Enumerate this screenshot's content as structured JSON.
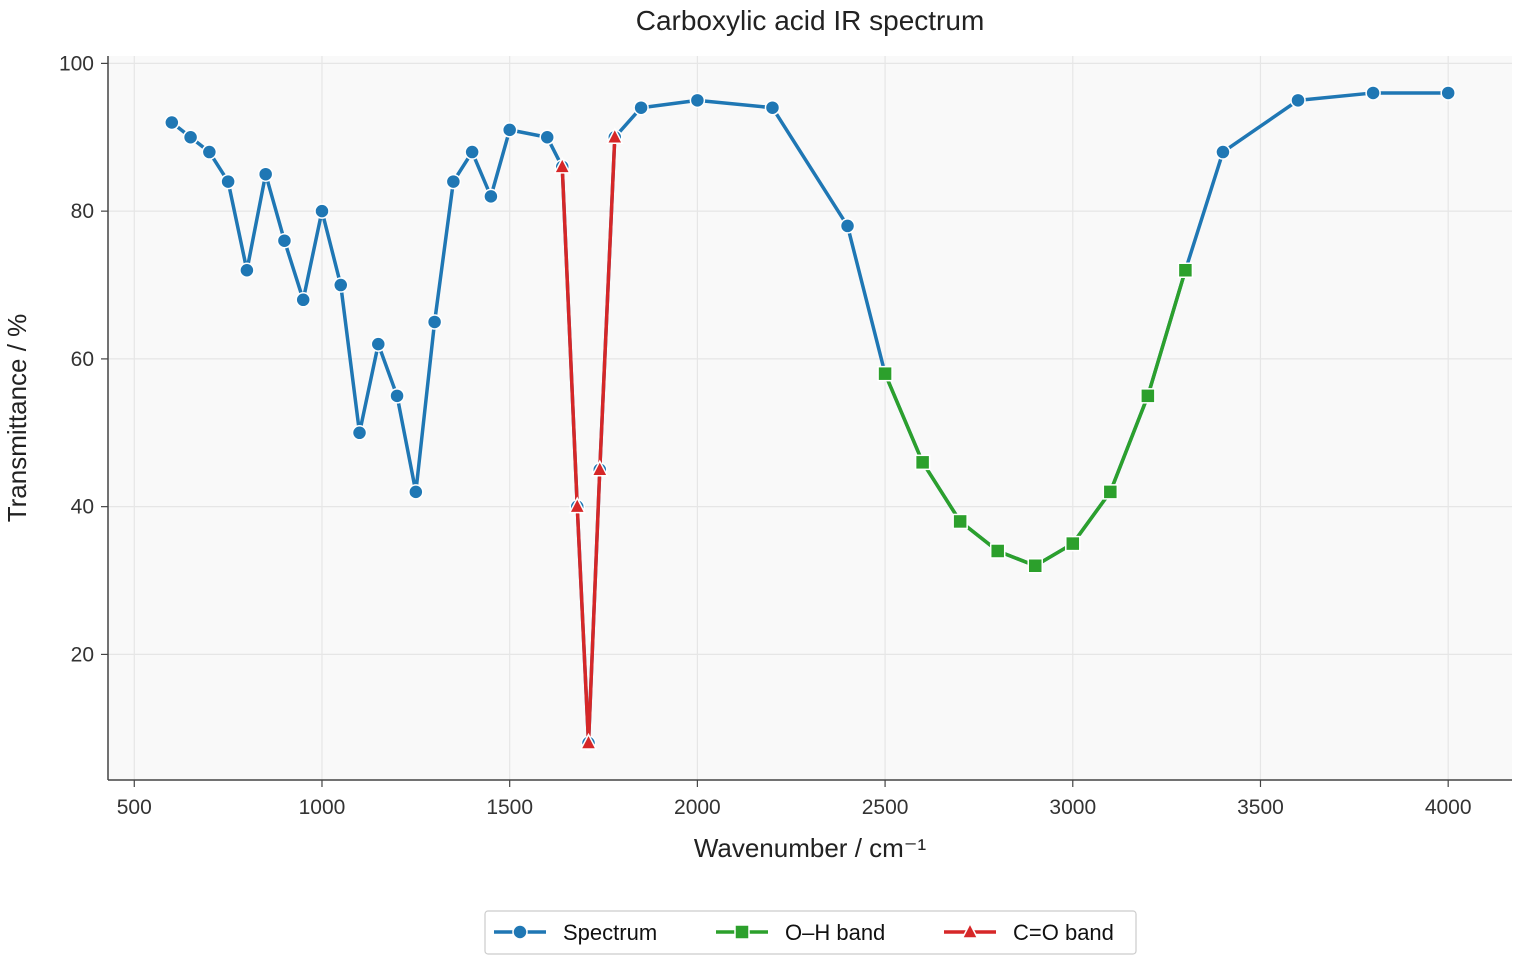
{
  "chart_data": {
    "type": "line",
    "title": "Carboxylic acid IR spectrum",
    "xlabel": "Wavenumber / cm⁻¹",
    "ylabel": "Transmittance / %",
    "xlim": [
      430,
      4170
    ],
    "ylim": [
      3,
      101
    ],
    "xticks": [
      500,
      1000,
      1500,
      2000,
      2500,
      3000,
      3500,
      4000
    ],
    "yticks": [
      20,
      40,
      60,
      80,
      100
    ],
    "grid": true,
    "legend_position": "bottom-center",
    "series": [
      {
        "name": "Spectrum",
        "color": "#1f77b4",
        "marker": "circle",
        "x": [
          600,
          650,
          700,
          750,
          800,
          850,
          900,
          950,
          1000,
          1050,
          1100,
          1150,
          1200,
          1250,
          1300,
          1350,
          1400,
          1450,
          1500,
          1600,
          1640,
          1680,
          1710,
          1740,
          1780,
          1850,
          2000,
          2200,
          2400,
          2500,
          2600,
          2700,
          2800,
          2900,
          3000,
          3100,
          3200,
          3300,
          3400,
          3600,
          3800,
          4000
        ],
        "y": [
          92,
          90,
          88,
          84,
          72,
          85,
          76,
          68,
          80,
          70,
          50,
          62,
          55,
          42,
          65,
          84,
          88,
          82,
          91,
          90,
          86,
          40,
          8,
          45,
          90,
          94,
          95,
          94,
          78,
          58,
          46,
          38,
          34,
          32,
          35,
          42,
          55,
          72,
          88,
          95,
          96,
          96
        ]
      },
      {
        "name": "O–H band",
        "color": "#2ca02c",
        "marker": "square",
        "x": [
          2500,
          2600,
          2700,
          2800,
          2900,
          3000,
          3100,
          3200,
          3300
        ],
        "y": [
          58,
          46,
          38,
          34,
          32,
          35,
          42,
          55,
          72
        ]
      },
      {
        "name": "C=O band",
        "color": "#d62728",
        "marker": "triangle",
        "x": [
          1640,
          1680,
          1710,
          1740,
          1780
        ],
        "y": [
          86,
          40,
          8,
          45,
          90
        ]
      }
    ]
  }
}
